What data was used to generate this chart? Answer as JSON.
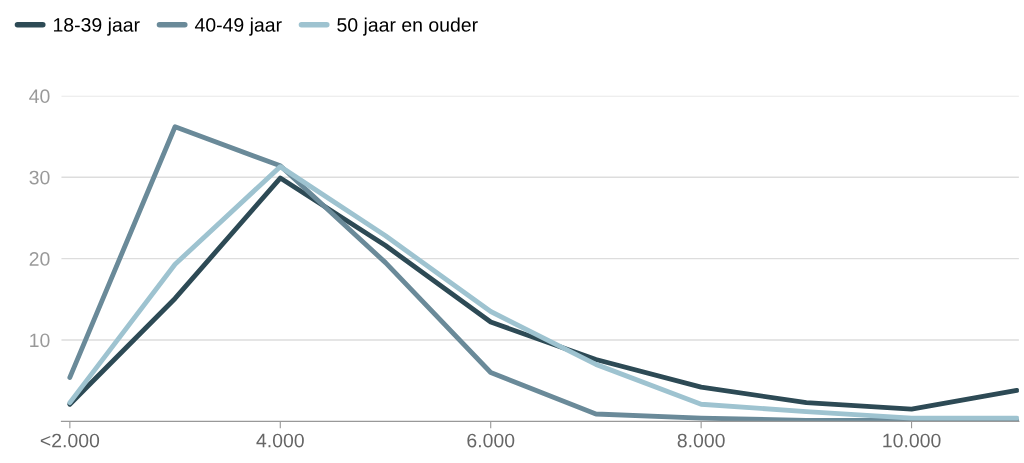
{
  "chart_data": {
    "type": "line",
    "categories": [
      "<2.000",
      null,
      "4.000",
      null,
      "6.000",
      null,
      "8.000",
      null,
      "10.000",
      null
    ],
    "series": [
      {
        "name": "18-39 jaar",
        "color": "#2d4a55",
        "values": [
          2.1,
          15.1,
          29.9,
          21.6,
          12.2,
          7.6,
          4.2,
          2.3,
          1.5,
          3.8
        ]
      },
      {
        "name": "40-49 jaar",
        "color": "#6a8a99",
        "values": [
          5.4,
          36.2,
          31.4,
          19.5,
          6.0,
          0.9,
          0.4,
          0.1,
          0.1,
          0.1
        ]
      },
      {
        "name": "50 jaar en ouder",
        "color": "#9ec3d0",
        "values": [
          2.3,
          19.3,
          31.3,
          22.8,
          13.5,
          7.0,
          2.1,
          1.2,
          0.4,
          0.4
        ]
      }
    ],
    "ylim": [
      0,
      40
    ],
    "yticks": [
      10,
      20,
      30,
      40
    ],
    "grid": "y",
    "legend": "top left",
    "marker": "none",
    "line_style": "solid"
  }
}
